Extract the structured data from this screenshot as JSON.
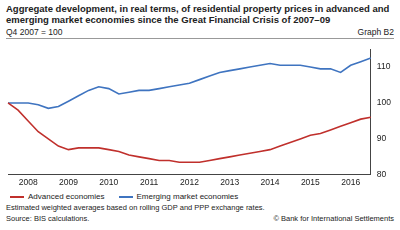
{
  "chart_data": {
    "type": "line",
    "title": "Aggregate development, in real terms, of residential property prices in advanced and emerging market economies since the Great Financial Crisis of 2007–09",
    "subtitle": "Q4 2007 = 100",
    "graph_number": "Graph B2",
    "note": "Estimated weighted averages based on rolling GDP and PPP exchange rates.",
    "source": "Source: BIS calculations.",
    "credit": "© Bank for International Settlements",
    "categories": [
      null,
      null,
      "2008",
      null,
      null,
      null,
      "2009",
      null,
      null,
      null,
      "2010",
      null,
      null,
      null,
      "2011",
      null,
      null,
      null,
      "2012",
      null,
      null,
      null,
      "2013",
      null,
      null,
      null,
      "2014",
      null,
      null,
      null,
      "2015",
      null,
      null,
      null,
      "2016",
      null,
      null
    ],
    "series": [
      {
        "name": "Advanced economies",
        "color": "#c0302c",
        "values": [
          100,
          98,
          95,
          92,
          90,
          88,
          87,
          87.5,
          87.5,
          87.5,
          87,
          86.5,
          85.5,
          85,
          84.5,
          84,
          84,
          83.5,
          83.5,
          83.5,
          84,
          84.5,
          85,
          85.5,
          86,
          86.5,
          87,
          88,
          89,
          90,
          91,
          91.5,
          92.5,
          93.5,
          94.5,
          95.5,
          96
        ]
      },
      {
        "name": "Emerging market economies",
        "color": "#3f74c0",
        "values": [
          100,
          100,
          100,
          99.5,
          98.5,
          99,
          100.5,
          102,
          103.5,
          104.5,
          104,
          102.5,
          103,
          103.5,
          103.5,
          104,
          104.5,
          105,
          105.5,
          106.5,
          107.5,
          108.5,
          109,
          109.5,
          110,
          110.5,
          111,
          110.5,
          110.5,
          110.5,
          110,
          109.5,
          109.5,
          108.5,
          110.5,
          111.5,
          112.5
        ]
      }
    ],
    "ylim": [
      80,
      115
    ],
    "yticks": [
      80,
      90,
      100,
      110
    ],
    "grid": false,
    "legend": "bottom"
  }
}
